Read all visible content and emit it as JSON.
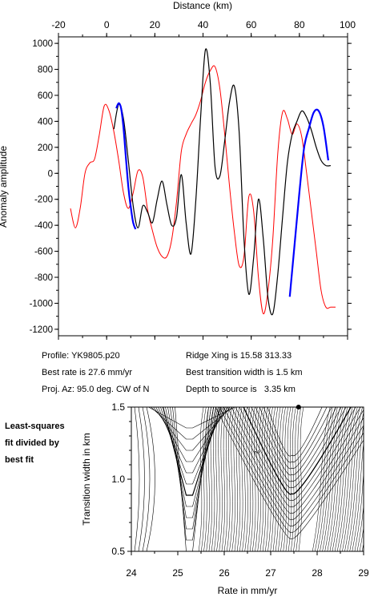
{
  "chart_data": [
    {
      "type": "line",
      "title": "",
      "xlabel": "Distance (km)",
      "ylabel": "Anomaly amplitude",
      "xlim": [
        -20,
        100
      ],
      "ylim": [
        -1250,
        1050
      ],
      "x_ticks": [
        -20,
        0,
        20,
        40,
        60,
        80,
        100
      ],
      "y_ticks": [
        1000,
        800,
        600,
        400,
        200,
        0,
        -200,
        -400,
        -600,
        -800,
        -1000,
        -1200
      ],
      "grid": false,
      "series": [
        {
          "color": "#ff0000",
          "x": [
            -15,
            -13,
            -11,
            -9,
            -7,
            -5,
            -3,
            -1,
            1,
            3,
            5,
            7,
            9,
            11,
            13,
            15,
            17,
            19,
            21,
            23,
            25,
            27,
            29,
            31,
            33,
            35,
            37,
            39,
            41,
            43,
            45,
            47,
            49,
            51,
            53,
            55,
            57,
            59,
            61,
            63,
            65,
            67,
            69,
            71,
            73,
            75,
            77,
            79,
            81,
            83,
            85,
            87,
            89,
            91,
            93,
            95
          ],
          "values": [
            -270,
            -420,
            -270,
            0,
            80,
            110,
            300,
            520,
            480,
            320,
            100,
            -150,
            -270,
            -150,
            20,
            -30,
            -280,
            -440,
            -570,
            -640,
            -640,
            -510,
            -220,
            170,
            300,
            380,
            450,
            560,
            700,
            790,
            820,
            650,
            300,
            -100,
            -450,
            -710,
            -640,
            -180,
            -290,
            -800,
            -1080,
            -900,
            -500,
            150,
            470,
            420,
            300,
            380,
            280,
            0,
            -300,
            -600,
            -900,
            -1030,
            -1030,
            -1030
          ]
        },
        {
          "color": "#000000",
          "x": [
            3,
            5,
            7,
            9,
            11,
            13,
            15,
            17,
            19,
            21,
            23,
            25,
            27,
            29,
            31,
            33,
            35,
            37,
            39,
            41,
            43,
            45,
            47,
            49,
            51,
            53,
            55,
            57,
            59,
            61,
            63,
            65,
            67,
            69,
            71,
            73,
            75,
            77,
            79,
            81,
            83,
            85,
            87,
            89,
            91,
            93
          ],
          "values": [
            340,
            530,
            420,
            100,
            -250,
            -420,
            -250,
            -300,
            -380,
            -200,
            -60,
            -240,
            -400,
            -340,
            -10,
            -380,
            -620,
            -210,
            430,
            950,
            700,
            50,
            -20,
            250,
            550,
            670,
            320,
            -500,
            -930,
            -650,
            -200,
            -500,
            -960,
            -1080,
            -780,
            -340,
            80,
            300,
            400,
            480,
            430,
            330,
            200,
            100,
            60,
            60
          ]
        },
        {
          "color": "#0000ff",
          "x": [
            4,
            5,
            6,
            7,
            8,
            9,
            10,
            11,
            12,
            76,
            78,
            80,
            82,
            84,
            86,
            88,
            90,
            92
          ],
          "values": [
            500,
            540,
            500,
            350,
            120,
            -100,
            -260,
            -380,
            -430,
            -950,
            -550,
            -150,
            200,
            350,
            470,
            480,
            360,
            100
          ]
        }
      ]
    },
    {
      "type": "contour",
      "title": "",
      "xlabel": "Rate in mm/yr",
      "ylabel": "Transition width in km",
      "xlim": [
        24,
        29
      ],
      "ylim": [
        0.5,
        1.5
      ],
      "x_ticks": [
        24,
        25,
        26,
        27,
        28,
        29
      ],
      "y_ticks": [
        0.5,
        1.0,
        1.5
      ],
      "contour_label": "2",
      "best_fit_point": {
        "x": 27.6,
        "y": 1.5
      },
      "grid": false
    }
  ],
  "info": {
    "profile": "Profile: YK9805.p20",
    "best_rate": "Best rate is 27.6 mm/yr",
    "proj_az": "Proj. Az: 95.0 deg. CW of N",
    "ridge_xing": "Ridge Xing is 15.58 313.33",
    "best_transition": "Best transition width is 1.5 km",
    "depth": "Depth to source is   3.35 km"
  },
  "side_note": {
    "line1": "Least-squares",
    "line2": "fit divided by",
    "line3": "best fit"
  }
}
